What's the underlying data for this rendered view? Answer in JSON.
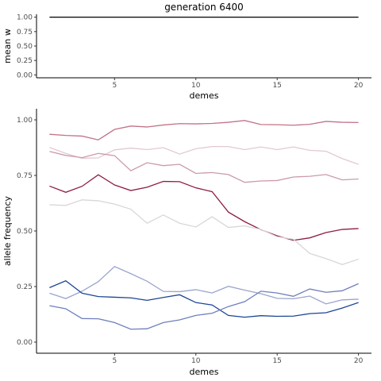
{
  "chart_data": [
    {
      "type": "line",
      "title": "generation 6400",
      "xlabel": "demes",
      "ylabel": "mean w",
      "xlim": [
        0.2,
        20.8
      ],
      "ylim": [
        -0.05,
        1.05
      ],
      "xticks": [
        5,
        10,
        15,
        20
      ],
      "yticks": [
        0.0,
        0.25,
        0.5,
        0.75,
        1.0
      ],
      "ytick_labels": [
        "0.00",
        "0.25",
        "0.50",
        "0.75",
        "1.00"
      ],
      "grid": false,
      "series": [
        {
          "color": "#000000",
          "x": [
            1,
            20
          ],
          "values": [
            1.0,
            1.0
          ]
        }
      ]
    },
    {
      "type": "line",
      "title": "",
      "xlabel": "demes",
      "ylabel": "allele frequency",
      "xlim": [
        0.2,
        20.8
      ],
      "ylim": [
        -0.05,
        1.05
      ],
      "xticks": [
        5,
        10,
        15,
        20
      ],
      "yticks": [
        0.0,
        0.25,
        0.5,
        0.75,
        1.0
      ],
      "ytick_labels": [
        "0.00",
        "0.25",
        "0.50",
        "0.75",
        "1.00"
      ],
      "grid": false,
      "x": [
        1,
        2,
        3,
        4,
        5,
        6,
        7,
        8,
        9,
        10,
        11,
        12,
        13,
        14,
        15,
        16,
        17,
        18,
        19,
        20
      ],
      "series": [
        {
          "color": "#c27388",
          "values": [
            0.935,
            0.93,
            0.927,
            0.91,
            0.957,
            0.972,
            0.968,
            0.977,
            0.983,
            0.982,
            0.984,
            0.989,
            0.997,
            0.979,
            0.978,
            0.976,
            0.98,
            0.993,
            0.989,
            0.988
          ]
        },
        {
          "color": "#e2c9d1",
          "values": [
            0.876,
            0.849,
            0.827,
            0.829,
            0.865,
            0.873,
            0.866,
            0.875,
            0.846,
            0.87,
            0.88,
            0.88,
            0.866,
            0.878,
            0.866,
            0.878,
            0.863,
            0.859,
            0.826,
            0.8
          ]
        },
        {
          "color": "#cc9aaa",
          "values": [
            0.858,
            0.84,
            0.83,
            0.849,
            0.839,
            0.771,
            0.807,
            0.794,
            0.8,
            0.759,
            0.763,
            0.754,
            0.719,
            0.725,
            0.727,
            0.743,
            0.746,
            0.754,
            0.73,
            0.734
          ]
        },
        {
          "color": "#8e1d44",
          "values": [
            0.702,
            0.674,
            0.701,
            0.753,
            0.707,
            0.682,
            0.697,
            0.723,
            0.722,
            0.694,
            0.677,
            0.585,
            0.542,
            0.506,
            0.478,
            0.458,
            0.469,
            0.493,
            0.507,
            0.511
          ]
        },
        {
          "color": "#dad6da",
          "values": [
            0.618,
            0.615,
            0.64,
            0.636,
            0.621,
            0.598,
            0.535,
            0.572,
            0.535,
            0.518,
            0.564,
            0.516,
            0.523,
            0.507,
            0.474,
            0.463,
            0.399,
            0.376,
            0.349,
            0.373
          ]
        },
        {
          "color": "#9aa5cd",
          "values": [
            0.22,
            0.196,
            0.229,
            0.272,
            0.34,
            0.308,
            0.274,
            0.228,
            0.227,
            0.236,
            0.221,
            0.251,
            0.234,
            0.218,
            0.197,
            0.195,
            0.207,
            0.172,
            0.19,
            0.193
          ]
        },
        {
          "color": "#1d4596",
          "values": [
            0.245,
            0.276,
            0.22,
            0.205,
            0.202,
            0.199,
            0.188,
            0.201,
            0.213,
            0.178,
            0.167,
            0.12,
            0.112,
            0.119,
            0.116,
            0.117,
            0.128,
            0.132,
            0.153,
            0.178
          ]
        },
        {
          "color": "#6f7fbd",
          "values": [
            0.164,
            0.15,
            0.106,
            0.105,
            0.088,
            0.058,
            0.06,
            0.088,
            0.1,
            0.12,
            0.13,
            0.16,
            0.182,
            0.229,
            0.221,
            0.206,
            0.239,
            0.224,
            0.231,
            0.263
          ]
        }
      ]
    }
  ]
}
